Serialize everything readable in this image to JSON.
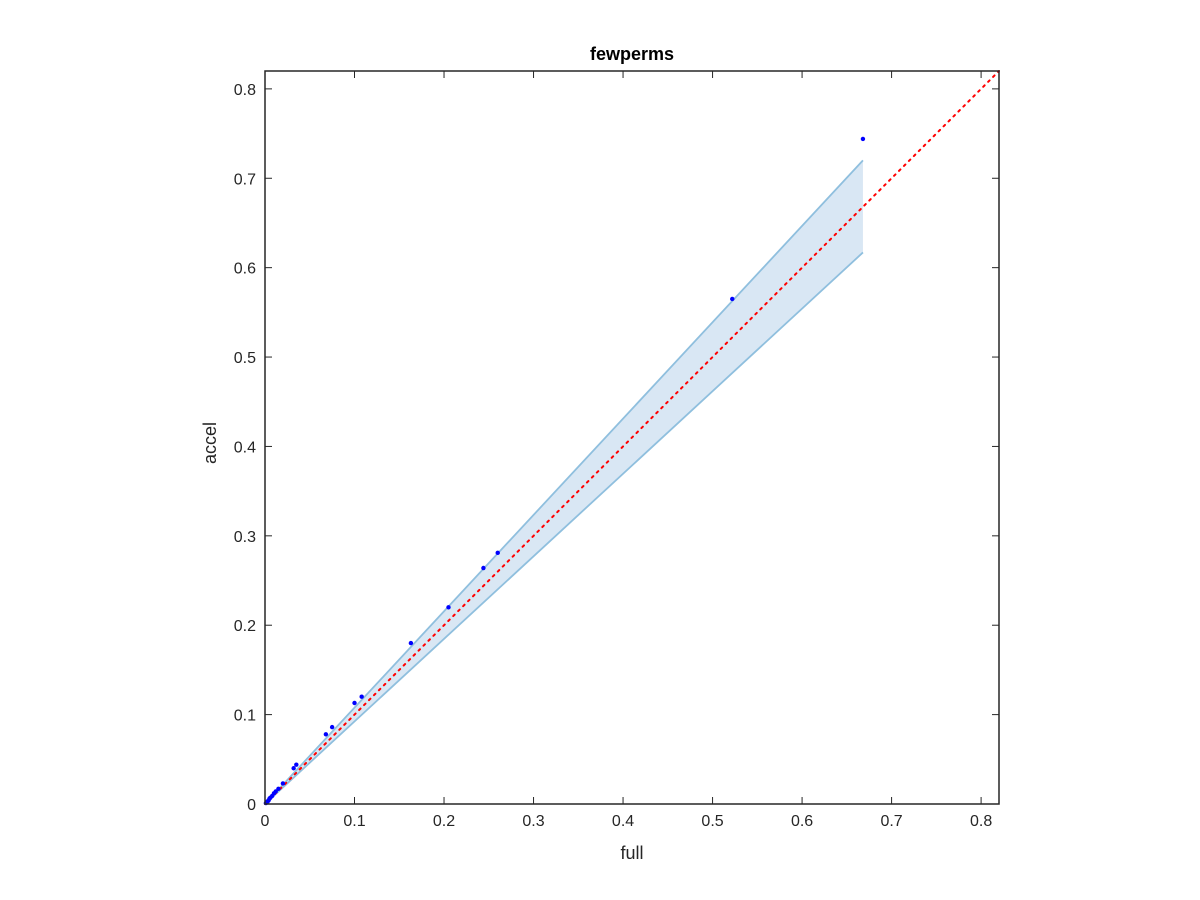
{
  "chart_data": {
    "type": "scatter",
    "title": "fewperms",
    "xlabel": "full",
    "ylabel": "accel",
    "xlim": [
      0,
      0.82
    ],
    "ylim": [
      0,
      0.82
    ],
    "xticks": [
      0,
      0.1,
      0.2,
      0.3,
      0.4,
      0.5,
      0.6,
      0.7,
      0.8
    ],
    "yticks": [
      0,
      0.1,
      0.2,
      0.3,
      0.4,
      0.5,
      0.6,
      0.7,
      0.8
    ],
    "xtick_labels": [
      "0",
      "0.1",
      "0.2",
      "0.3",
      "0.4",
      "0.5",
      "0.6",
      "0.7",
      "0.8"
    ],
    "ytick_labels": [
      "0",
      "0.1",
      "0.2",
      "0.3",
      "0.4",
      "0.5",
      "0.6",
      "0.7",
      "0.8"
    ],
    "grid": false,
    "points": {
      "x": [
        0.001,
        0.002,
        0.003,
        0.004,
        0.005,
        0.006,
        0.008,
        0.01,
        0.012,
        0.015,
        0.02,
        0.032,
        0.035,
        0.068,
        0.075,
        0.1,
        0.108,
        0.163,
        0.205,
        0.244,
        0.26,
        0.522,
        0.668
      ],
      "y": [
        0.001,
        0.002,
        0.003,
        0.004,
        0.006,
        0.007,
        0.009,
        0.012,
        0.014,
        0.017,
        0.023,
        0.04,
        0.044,
        0.078,
        0.086,
        0.113,
        0.12,
        0.18,
        0.22,
        0.264,
        0.281,
        0.565,
        0.744
      ],
      "color": "#0000ff"
    },
    "band": {
      "x": [
        0,
        0.668
      ],
      "upper": [
        0,
        0.72
      ],
      "lower": [
        0,
        0.617
      ],
      "fill_color": "#d9e7f4",
      "edge_color": "#8fbfde"
    },
    "reference_line": {
      "x": [
        0,
        0.82
      ],
      "y": [
        0,
        0.82
      ],
      "style": "dotted",
      "color": "#ff0000"
    }
  }
}
